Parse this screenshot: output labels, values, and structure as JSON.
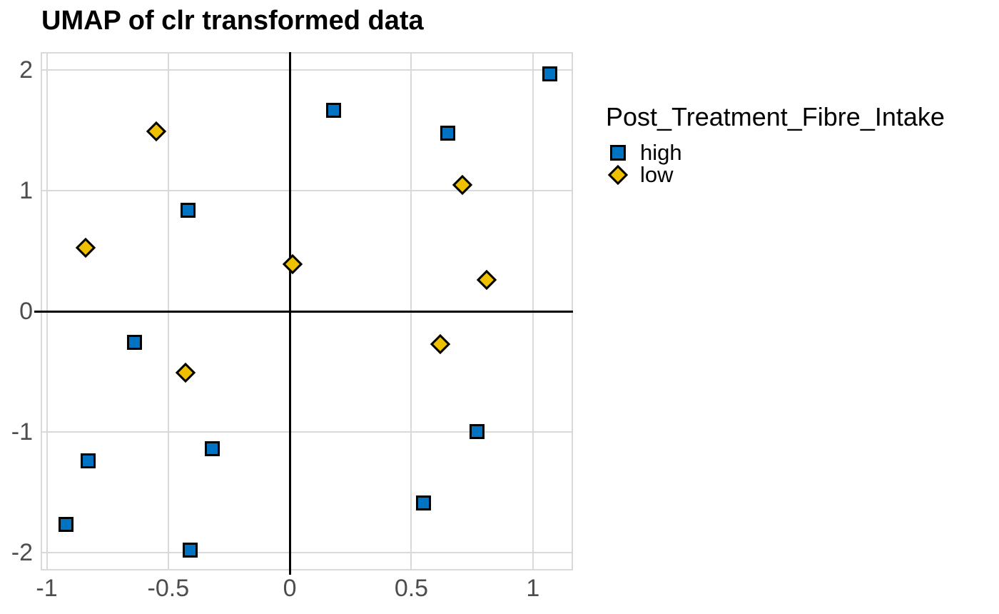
{
  "chart": {
    "title": "UMAP of clr transformed data"
  },
  "chart_data": {
    "type": "scatter",
    "title": "UMAP of clr transformed data",
    "xlabel": "",
    "ylabel": "",
    "xlim": [
      -1.025,
      1.165
    ],
    "ylim": [
      -2.15,
      2.15
    ],
    "x_ticks": [
      -1,
      -0.5,
      0,
      0.5,
      1
    ],
    "x_tick_labels": [
      "-1",
      "-0.5",
      "0",
      "0.5",
      "1"
    ],
    "y_ticks": [
      -2,
      -1,
      0,
      1,
      2
    ],
    "y_tick_labels": [
      "-2",
      "-1",
      "0",
      "1",
      "2"
    ],
    "grid": true,
    "legend_title": "Post_Treatment_Fibre_Intake",
    "legend_position": "right",
    "reference_lines": {
      "vline_x": 0,
      "hline_y": 0,
      "color": "#000000"
    },
    "series": [
      {
        "name": "high",
        "marker": "square",
        "color": "#0073C2",
        "stroke": "#000000",
        "points": [
          [
            1.07,
            1.97
          ],
          [
            0.18,
            1.67
          ],
          [
            0.65,
            1.48
          ],
          [
            -0.42,
            0.84
          ],
          [
            -0.64,
            -0.26
          ],
          [
            -0.32,
            -1.14
          ],
          [
            -0.83,
            -1.24
          ],
          [
            -0.92,
            -1.77
          ],
          [
            -0.41,
            -1.98
          ],
          [
            0.77,
            -1.0
          ],
          [
            0.55,
            -1.59
          ]
        ]
      },
      {
        "name": "low",
        "marker": "diamond",
        "color": "#EFC000",
        "stroke": "#000000",
        "points": [
          [
            -0.55,
            1.49
          ],
          [
            -0.84,
            0.53
          ],
          [
            0.01,
            0.39
          ],
          [
            0.71,
            1.05
          ],
          [
            0.81,
            0.26
          ],
          [
            0.62,
            -0.27
          ],
          [
            -0.43,
            -0.51
          ]
        ]
      }
    ],
    "colors": {
      "grid": "#D9D9D9",
      "panel_border": "#D9D9D9",
      "tick_label": "#4D4D4D",
      "title_text": "#000000",
      "background": "#FFFFFF"
    }
  }
}
